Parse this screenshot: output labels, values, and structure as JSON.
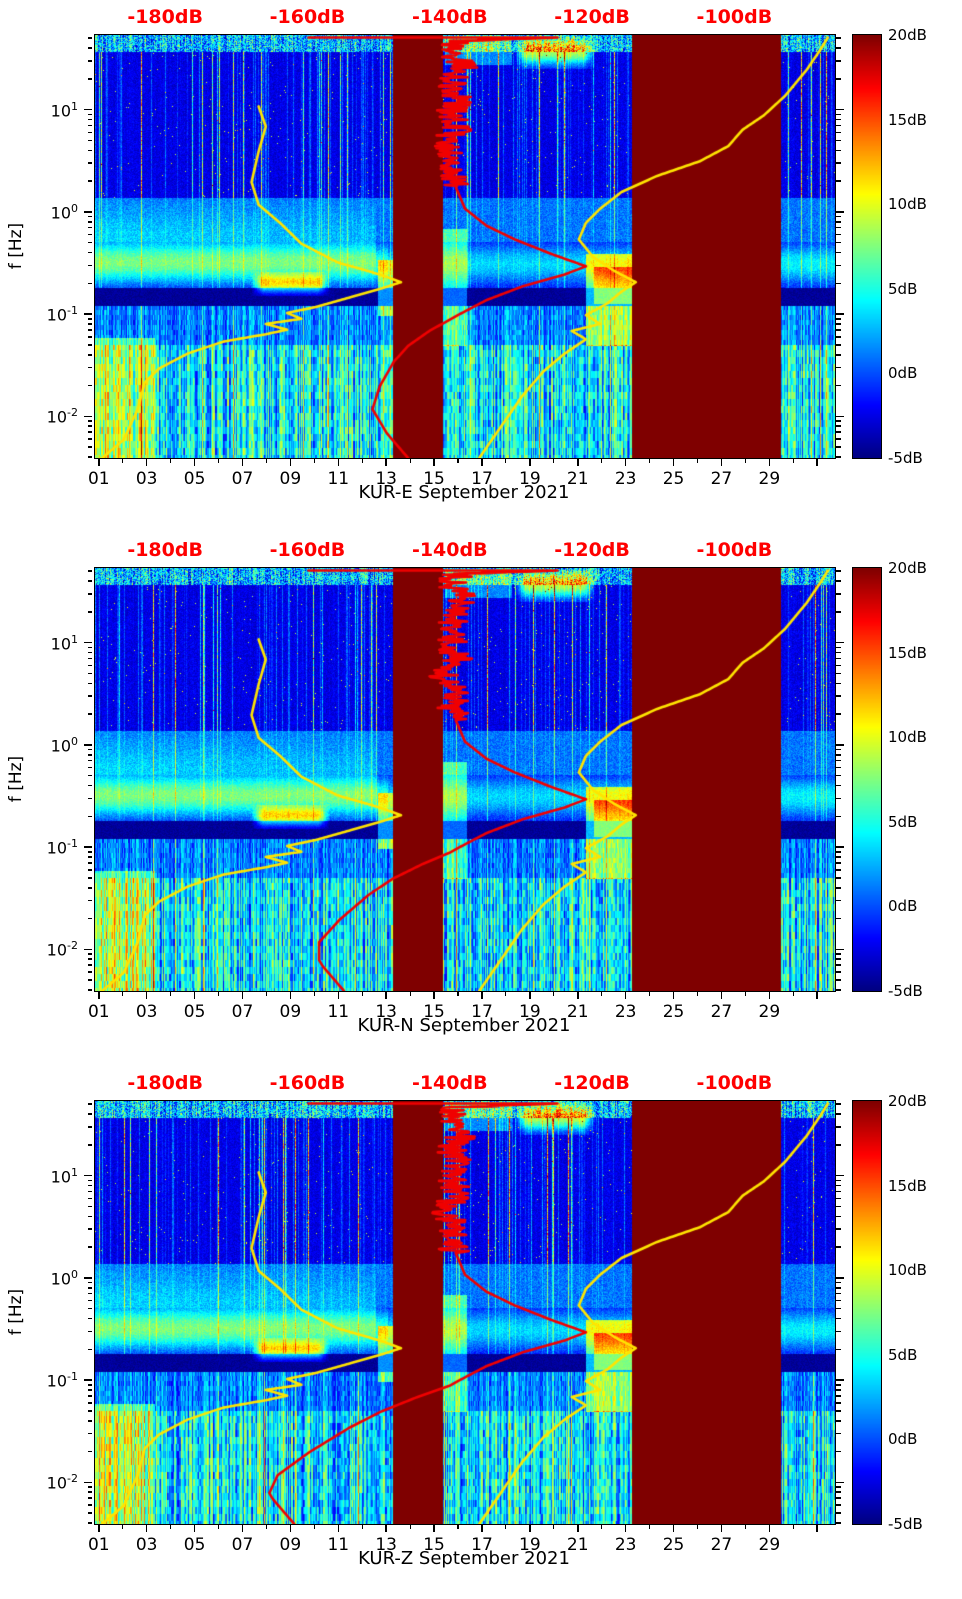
{
  "figure": {
    "background": "#ffffff"
  },
  "chart_data": {
    "type": "heatmap",
    "description": "Three stacked seismic power spectral density spectrograms (station KUR components E, N, Z) for September 2021, with overlay PSD percentile curves referenced to the red top dB axis.",
    "panels": [
      {
        "title": "KUR-E September 2021",
        "seed": 101,
        "red_low_shift_db": 0
      },
      {
        "title": "KUR-N September 2021",
        "seed": 202,
        "red_low_shift_db": -9
      },
      {
        "title": "KUR-Z September 2021",
        "seed": 303,
        "red_low_shift_db": -16
      }
    ],
    "x_axis": {
      "domain_days": [
        0.8,
        31.7
      ],
      "tick_days": [
        1,
        3,
        5,
        7,
        9,
        11,
        13,
        15,
        17,
        19,
        21,
        23,
        25,
        27,
        29
      ],
      "tick_labels": [
        "01",
        "03",
        "05",
        "07",
        "09",
        "11",
        "13",
        "15",
        "17",
        "19",
        "21",
        "23",
        "25",
        "27",
        "29"
      ],
      "unlabeled_major_days": [
        31
      ],
      "minor_tick_days": [
        2,
        4,
        6,
        8,
        10,
        12,
        14,
        16,
        18,
        20,
        22,
        24,
        26,
        28,
        30
      ]
    },
    "y_axis": {
      "label": "f [Hz]",
      "domain_hz": [
        0.004,
        55
      ],
      "major_ticks": [
        {
          "hz": 0.01,
          "mantissa": "10",
          "exponent": "-2"
        },
        {
          "hz": 0.1,
          "mantissa": "10",
          "exponent": "-1"
        },
        {
          "hz": 1,
          "mantissa": "10",
          "exponent": "0"
        },
        {
          "hz": 10,
          "mantissa": "10",
          "exponent": "1"
        }
      ]
    },
    "top_axis": {
      "color": "#ff0000",
      "domain_db": [
        -190,
        -86
      ],
      "ticks": [
        {
          "db": -180,
          "label": "-180dB"
        },
        {
          "db": -160,
          "label": "-160dB"
        },
        {
          "db": -140,
          "label": "-140dB"
        },
        {
          "db": -120,
          "label": "-120dB"
        },
        {
          "db": -100,
          "label": "-100dB"
        }
      ]
    },
    "colorbar": {
      "colormap": "jet",
      "domain_db": [
        -5,
        20
      ],
      "ticks": [
        {
          "db": 20,
          "label": "20dB"
        },
        {
          "db": 15,
          "label": "15dB"
        },
        {
          "db": 10,
          "label": "10dB"
        },
        {
          "db": 5,
          "label": "5dB"
        },
        {
          "db": 0,
          "label": "0dB"
        },
        {
          "db": -5,
          "label": "-5dB"
        }
      ]
    },
    "saturated_day_ranges": [
      [
        13.22,
        15.32
      ],
      [
        23.22,
        29.42
      ]
    ],
    "saturated_db": 24,
    "features": [
      {
        "days": [
          7.3,
          10.6
        ],
        "hz": [
          0.155,
          0.27
        ],
        "add_db": 10,
        "soft": true
      },
      {
        "days": [
          12.6,
          13.22
        ],
        "hz": [
          0.1,
          0.35
        ],
        "add_db": 6
      },
      {
        "days": [
          15.32,
          16.3
        ],
        "hz": [
          0.05,
          0.7
        ],
        "add_db": 5
      },
      {
        "days": [
          21.3,
          23.22
        ],
        "hz": [
          0.05,
          0.4
        ],
        "add_db": 7
      },
      {
        "days": [
          21.6,
          23.22
        ],
        "hz": [
          0.13,
          0.3
        ],
        "add_db": 5
      },
      {
        "days": [
          18.3,
          21.7
        ],
        "hz": [
          26,
          55
        ],
        "add_db": 11,
        "soft": true
      },
      {
        "days": [
          15.4,
          18.2
        ],
        "hz": [
          28,
          55
        ],
        "add_db": 4
      },
      {
        "days": [
          0.8,
          3.3
        ],
        "hz": [
          0.004,
          0.06
        ],
        "add_db": 5
      }
    ],
    "overlays": {
      "yellow_low_percentile": {
        "color": "#ffe400",
        "points_db_hz": [
          [
            -189,
            0.004
          ],
          [
            -186,
            0.006
          ],
          [
            -184,
            0.012
          ],
          [
            -183,
            0.022
          ],
          [
            -181,
            0.03
          ],
          [
            -177,
            0.042
          ],
          [
            -172,
            0.055
          ],
          [
            -166,
            0.065
          ],
          [
            -163,
            0.072
          ],
          [
            -166,
            0.082
          ],
          [
            -161,
            0.092
          ],
          [
            -163,
            0.105
          ],
          [
            -159,
            0.12
          ],
          [
            -154,
            0.15
          ],
          [
            -150,
            0.18
          ],
          [
            -147,
            0.21
          ],
          [
            -150,
            0.25
          ],
          [
            -156,
            0.33
          ],
          [
            -161,
            0.5
          ],
          [
            -164,
            0.8
          ],
          [
            -167,
            1.2
          ],
          [
            -168,
            2
          ],
          [
            -167,
            4
          ],
          [
            -166,
            7
          ],
          [
            -167,
            11
          ]
        ]
      },
      "yellow_high_percentile": {
        "color": "#ffe400",
        "points_db_hz": [
          [
            -136,
            0.004
          ],
          [
            -133,
            0.008
          ],
          [
            -130,
            0.016
          ],
          [
            -127,
            0.028
          ],
          [
            -124,
            0.042
          ],
          [
            -121,
            0.058
          ],
          [
            -123,
            0.07
          ],
          [
            -119,
            0.082
          ],
          [
            -121,
            0.1
          ],
          [
            -118,
            0.13
          ],
          [
            -116,
            0.17
          ],
          [
            -114,
            0.21
          ],
          [
            -117,
            0.27
          ],
          [
            -120,
            0.37
          ],
          [
            -122,
            0.55
          ],
          [
            -121,
            0.8
          ],
          [
            -119,
            1.1
          ],
          [
            -116,
            1.6
          ],
          [
            -111,
            2.3
          ],
          [
            -105,
            3.2
          ],
          [
            -101,
            4.5
          ],
          [
            -99,
            6.5
          ],
          [
            -96,
            9
          ],
          [
            -93,
            14
          ],
          [
            -90,
            25
          ],
          [
            -88,
            40
          ],
          [
            -87,
            52
          ]
        ]
      },
      "red_median": {
        "color": "#f00000",
        "points_db_hz": [
          [
            -146,
            0.004
          ],
          [
            -149,
            0.007
          ],
          [
            -151,
            0.012
          ],
          [
            -150,
            0.02
          ],
          [
            -148,
            0.035
          ],
          [
            -146,
            0.05
          ],
          [
            -143,
            0.07
          ],
          [
            -139,
            0.1
          ],
          [
            -135,
            0.14
          ],
          [
            -130,
            0.19
          ],
          [
            -124,
            0.25
          ],
          [
            -121,
            0.3
          ],
          [
            -126,
            0.4
          ],
          [
            -131,
            0.55
          ],
          [
            -135,
            0.75
          ],
          [
            -138,
            1.1
          ],
          [
            -139,
            1.6
          ],
          [
            -140,
            2.3
          ],
          [
            -139,
            3.3
          ],
          [
            -141,
            4.7
          ],
          [
            -139,
            6.7
          ],
          [
            -140,
            9.5
          ],
          [
            -139,
            13
          ],
          [
            -140,
            19
          ],
          [
            -138,
            27
          ],
          [
            -140,
            38
          ],
          [
            -139,
            48
          ],
          [
            -125,
            52
          ],
          [
            -160,
            52
          ]
        ],
        "jitter": {
          "hz": [
            1.8,
            50
          ],
          "amp_db": 2.2
        }
      }
    }
  }
}
